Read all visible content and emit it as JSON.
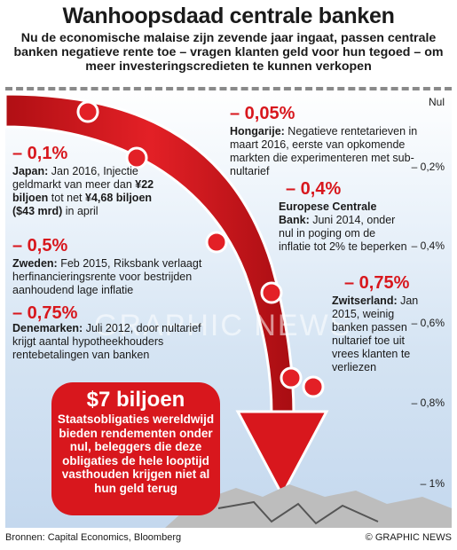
{
  "title": "Wanhoopsdaad centrale banken",
  "subtitle": "Nu de economische malaise zijn zevende jaar ingaat, passen centrale banken negatieve rente toe – vragen klanten geld voor hun tegoed – om meer investeringscredieten te kunnen verkopen",
  "axis": {
    "top_label": "Nul",
    "ticks": [
      "– 0,2%",
      "– 0,4%",
      "– 0,6%",
      "– 0,8%",
      "– 1%"
    ]
  },
  "entries": {
    "hungary": {
      "rate": "– 0,05%",
      "country": "Hongarije:",
      "text": "Negatieve rentetarieven in maart 2016, eerste van opkomende markten die experimenteren met sub-nultarief"
    },
    "japan": {
      "rate": "– 0,1%",
      "country": "Japan:",
      "text_a": "Jan 2016,",
      "text_b": "Injectie geldmarkt van meer dan",
      "amount1": "¥22 biljoen",
      "text_c": "tot net",
      "amount2": "¥4,68 biljoen ($43 mrd)",
      "text_d": "in april"
    },
    "ecb": {
      "rate": "– 0,4%",
      "country": "Europese Centrale Bank:",
      "text": "Juni 2014, onder nul in poging om de inflatie tot 2% te beperken"
    },
    "sweden": {
      "rate": "– 0,5%",
      "country": "Zweden:",
      "text": "Feb 2015, Riksbank verlaagt herfinancieringsrente voor bestrijden aanhoudend lage inflatie"
    },
    "switzerland": {
      "rate": "– 0,75%",
      "country": "Zwitserland:",
      "text": "Jan 2015, weinig banken passen nultarief toe uit vrees klanten te verliezen"
    },
    "denmark": {
      "rate": "– 0,75%",
      "country": "Denemarken:",
      "text": "Juli 2012, door nultarief krijgt aantal hypotheekhouders rentebetalingen van banken"
    }
  },
  "callout": {
    "amount": "$7 biljoen",
    "text": "Staatsobligaties wereldwijd bieden rendementen onder nul, beleggers die deze obligaties de hele looptijd vasthouden krijgen niet al hun geld terug"
  },
  "watermark": "GRAPHIC NEWS",
  "footer": {
    "sources": "Bronnen: Capital Economics, Bloomberg",
    "credit": "© GRAPHIC NEWS"
  },
  "colors": {
    "accent": "#d8171d",
    "arrow": "#d8171d",
    "panel_bg": "#d5e4f3"
  },
  "icons": [
    "down-arrow-icon",
    "rate-marker-icon",
    "cracked-ground-icon"
  ]
}
